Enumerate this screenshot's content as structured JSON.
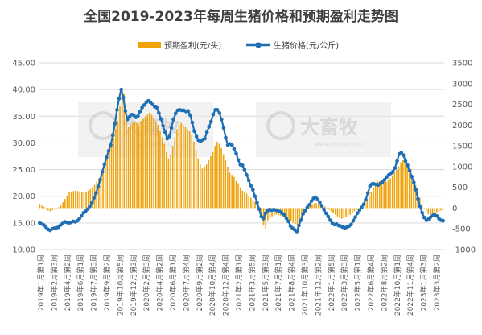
{
  "chart_data": {
    "type": "bar+line",
    "title": "全国2019-2023年每周生猪价格和预期盈利走势图",
    "legend": [
      "预期盈利(元/头)",
      "生猪价格(元/公斤)"
    ],
    "legend_position": "top",
    "colors": {
      "bar": "#f0a30a",
      "line": "#1f6fb3",
      "grid": "#d9d9d9"
    },
    "left_axis": {
      "min": 10,
      "max": 45,
      "step": 5,
      "ticks": [
        "10.00",
        "15.00",
        "20.00",
        "25.00",
        "30.00",
        "35.00",
        "40.00",
        "45.00"
      ]
    },
    "right_axis": {
      "min": -1000,
      "max": 3500,
      "step": 500,
      "ticks": [
        "-1000",
        "-500",
        "0",
        "500",
        "1000",
        "1500",
        "2000",
        "2500",
        "3000",
        "3500"
      ]
    },
    "grid": true,
    "x_tick_labels": [
      "2019年1月第1周",
      "2019年2月第3周",
      "2019年4月第2周",
      "2019年6月第1周",
      "2019年7月第3周",
      "2019年9月第2周",
      "2019年10月第5周",
      "2019年12月第3周",
      "2020年2月第3周",
      "2020年4月第2周",
      "2020年6月第1周",
      "2020年7月第4周",
      "2020年9月第2周",
      "2020年10月第4周",
      "2020年12月第4周",
      "2021年2月第1周",
      "2021年3月第5周",
      "2021年5月第3周",
      "2021年7月第1周",
      "2021年8月第4周",
      "2021年10月第3周",
      "2021年12月第2周",
      "2022年1月第5周",
      "2022年3月第3周",
      "2022年5月第1周",
      "2022年6月第4周",
      "2022年8月第2周",
      "2022年10月第1周",
      "2022年11月第4周",
      "2023年1月第3周",
      "2023年3月第2周"
    ],
    "price_series": [
      15.0,
      14.8,
      14.6,
      14.2,
      13.8,
      13.6,
      13.9,
      14.0,
      14.1,
      14.2,
      14.6,
      14.9,
      15.2,
      15.1,
      15.0,
      15.1,
      15.3,
      15.2,
      15.4,
      15.8,
      16.3,
      16.9,
      17.2,
      17.6,
      18.1,
      18.8,
      19.7,
      20.6,
      21.8,
      23.1,
      24.6,
      26.0,
      27.3,
      28.5,
      29.6,
      31.4,
      33.6,
      36.2,
      38.3,
      40.0,
      38.5,
      36.0,
      34.4,
      34.9,
      35.3,
      35.2,
      34.8,
      35.0,
      35.9,
      36.6,
      37.1,
      37.6,
      37.9,
      37.6,
      37.2,
      36.8,
      36.6,
      35.6,
      34.5,
      33.2,
      32.0,
      30.8,
      31.2,
      32.8,
      34.4,
      35.5,
      36.1,
      36.2,
      36.1,
      36.1,
      35.9,
      36.0,
      35.2,
      33.8,
      32.2,
      31.2,
      30.5,
      30.3,
      30.6,
      30.8,
      32.0,
      33.0,
      34.0,
      35.3,
      36.2,
      36.2,
      35.6,
      34.4,
      32.8,
      31.0,
      29.6,
      29.8,
      29.6,
      28.9,
      28.0,
      26.8,
      25.9,
      25.8,
      25.0,
      24.0,
      23.0,
      22.0,
      21.2,
      20.0,
      18.8,
      17.6,
      16.2,
      15.8,
      16.8,
      17.3,
      17.5,
      17.4,
      17.5,
      17.4,
      17.3,
      17.1,
      16.8,
      16.5,
      15.9,
      15.3,
      14.4,
      14.0,
      13.7,
      13.4,
      14.5,
      15.5,
      16.7,
      17.3,
      17.9,
      18.4,
      19.1,
      19.6,
      19.8,
      19.4,
      18.9,
      18.2,
      17.5,
      16.8,
      16.2,
      15.5,
      14.9,
      14.7,
      14.8,
      14.5,
      14.4,
      14.2,
      14.1,
      14.2,
      14.4,
      14.7,
      15.4,
      16.1,
      16.8,
      17.4,
      17.9,
      18.5,
      19.4,
      20.6,
      21.9,
      22.3,
      22.3,
      22.2,
      22.1,
      22.4,
      22.7,
      23.1,
      23.6,
      24.0,
      24.3,
      24.6,
      25.3,
      26.6,
      27.9,
      28.2,
      27.7,
      26.6,
      25.8,
      24.8,
      23.7,
      22.6,
      21.2,
      19.5,
      18.1,
      16.9,
      16.0,
      15.5,
      15.7,
      16.1,
      16.4,
      16.5,
      16.3,
      15.8,
      15.5,
      15.4
    ],
    "profit_series": [
      100,
      60,
      30,
      -20,
      -60,
      -80,
      -50,
      -20,
      0,
      20,
      60,
      140,
      220,
      300,
      380,
      400,
      410,
      420,
      410,
      400,
      390,
      380,
      400,
      420,
      460,
      500,
      560,
      640,
      720,
      820,
      960,
      1100,
      1250,
      1400,
      1550,
      1700,
      1900,
      2100,
      2450,
      2900,
      2750,
      2200,
      1950,
      2000,
      2050,
      2100,
      2050,
      2000,
      2100,
      2150,
      2200,
      2250,
      2300,
      2250,
      2200,
      2100,
      2000,
      1850,
      1700,
      1550,
      1350,
      1200,
      1300,
      1500,
      1700,
      1900,
      2000,
      2050,
      2000,
      1950,
      1900,
      1850,
      1750,
      1600,
      1400,
      1200,
      1050,
      950,
      1000,
      1050,
      1150,
      1250,
      1350,
      1500,
      1600,
      1550,
      1450,
      1300,
      1150,
      1000,
      850,
      800,
      750,
      650,
      600,
      500,
      420,
      400,
      350,
      300,
      250,
      200,
      150,
      100,
      0,
      -200,
      -400,
      -500,
      -300,
      -250,
      -200,
      -180,
      -160,
      -170,
      -180,
      -200,
      -220,
      -250,
      -280,
      -300,
      -350,
      -380,
      -420,
      -450,
      -300,
      -150,
      0,
      50,
      80,
      100,
      110,
      120,
      110,
      90,
      70,
      40,
      0,
      -40,
      -80,
      -120,
      -160,
      -200,
      -240,
      -260,
      -240,
      -220,
      -200,
      -160,
      -120,
      -80,
      -40,
      0,
      40,
      80,
      120,
      200,
      300,
      400,
      500,
      600,
      650,
      650,
      640,
      620,
      640,
      680,
      720,
      780,
      850,
      920,
      1000,
      1100,
      1150,
      1100,
      1000,
      900,
      800,
      700,
      550,
      400,
      250,
      100,
      0,
      -80,
      -150,
      -160,
      -140,
      -120,
      -100,
      -80,
      -60,
      -40
    ]
  },
  "watermarks": [
    {
      "brand": "大畜牧",
      "site": "www.dxumu.com"
    },
    {
      "brand": "大畜牧",
      "site": "www.dxumu.com"
    }
  ]
}
